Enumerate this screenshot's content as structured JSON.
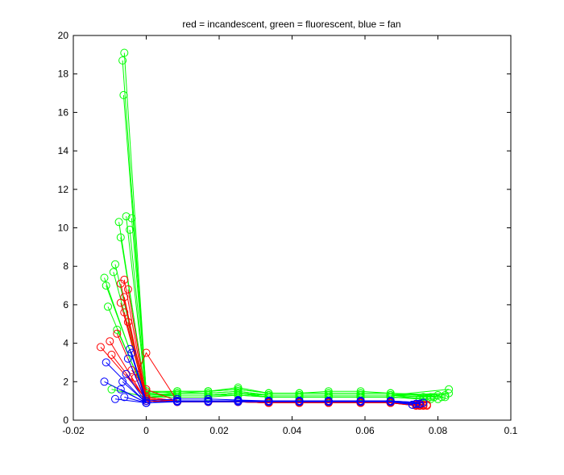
{
  "chart_data": {
    "type": "line",
    "title": "red = incandescent, green = fluorescent, blue = fan",
    "xlabel": "",
    "ylabel": "",
    "xlim": [
      -0.02,
      0.1
    ],
    "ylim": [
      0,
      20
    ],
    "xticks": [
      "-0.02",
      "0",
      "0.02",
      "0.04",
      "0.06",
      "0.08",
      "0.1"
    ],
    "yticks": [
      "0",
      "2",
      "4",
      "6",
      "8",
      "10",
      "12",
      "14",
      "16",
      "18",
      "20"
    ],
    "grid": false,
    "marker": "circle-open",
    "series": [
      {
        "color": "#00ff00",
        "x": [
          -0.006,
          0,
          0.0085,
          0.017,
          0.0252,
          0.0336,
          0.042,
          0.05,
          0.0588,
          0.067,
          0.083
        ],
        "y": [
          19.1,
          1.4,
          1.3,
          1.3,
          1.4,
          1.3,
          1.3,
          1.3,
          1.3,
          1.3,
          1.6
        ]
      },
      {
        "color": "#00ff00",
        "x": [
          -0.0065,
          0,
          0.0085,
          0.017,
          0.0252,
          0.0336,
          0.042,
          0.05,
          0.0588,
          0.067,
          0.083
        ],
        "y": [
          18.7,
          1.3,
          1.3,
          1.3,
          1.4,
          1.3,
          1.3,
          1.3,
          1.3,
          1.3,
          1.4
        ]
      },
      {
        "color": "#00ff00",
        "x": [
          -0.0062,
          0,
          0.0085,
          0.017,
          0.0252,
          0.0336,
          0.042,
          0.05,
          0.0588,
          0.067,
          0.082
        ],
        "y": [
          16.9,
          1.5,
          1.4,
          1.5,
          1.6,
          1.4,
          1.4,
          1.4,
          1.4,
          1.4,
          1.3
        ]
      },
      {
        "color": "#00ff00",
        "x": [
          -0.004,
          0,
          0.0085,
          0.017,
          0.0252,
          0.0336,
          0.042,
          0.05,
          0.0588,
          0.067,
          0.082
        ],
        "y": [
          10.5,
          1.5,
          1.5,
          1.5,
          1.7,
          1.4,
          1.4,
          1.5,
          1.5,
          1.4,
          1.2
        ]
      },
      {
        "color": "#00ff00",
        "x": [
          -0.0055,
          0,
          0.0085,
          0.017,
          0.0252,
          0.0336,
          0.042,
          0.05,
          0.0588,
          0.067,
          0.081
        ],
        "y": [
          10.6,
          1.3,
          1.4,
          1.4,
          1.5,
          1.3,
          1.3,
          1.3,
          1.3,
          1.3,
          1.2
        ]
      },
      {
        "color": "#00ff00",
        "x": [
          -0.0075,
          0,
          0.0085,
          0.017,
          0.0252,
          0.0336,
          0.042,
          0.05,
          0.0588,
          0.067,
          0.08
        ],
        "y": [
          10.3,
          1.2,
          1.3,
          1.3,
          1.4,
          1.2,
          1.2,
          1.2,
          1.2,
          1.2,
          1.1
        ]
      },
      {
        "color": "#00ff00",
        "x": [
          -0.0045,
          0,
          0.0085,
          0.017,
          0.0252,
          0.0336,
          0.042,
          0.05,
          0.0588,
          0.067,
          0.08
        ],
        "y": [
          9.9,
          1.4,
          1.5,
          1.5,
          1.6,
          1.4,
          1.4,
          1.4,
          1.4,
          1.4,
          1.3
        ]
      },
      {
        "color": "#00ff00",
        "x": [
          -0.007,
          0,
          0.0085,
          0.017,
          0.0252,
          0.0336,
          0.042,
          0.05,
          0.0588,
          0.067,
          0.079
        ],
        "y": [
          9.5,
          1.3,
          1.4,
          1.4,
          1.5,
          1.3,
          1.3,
          1.3,
          1.3,
          1.3,
          1.2
        ]
      },
      {
        "color": "#00ff00",
        "x": [
          -0.0085,
          0,
          0.0085,
          0.017,
          0.0252,
          0.0336,
          0.042,
          0.05,
          0.0588,
          0.067,
          0.078
        ],
        "y": [
          8.1,
          1.2,
          1.3,
          1.3,
          1.4,
          1.2,
          1.2,
          1.2,
          1.2,
          1.2,
          1.1
        ]
      },
      {
        "color": "#00ff00",
        "x": [
          -0.009,
          0,
          0.0085,
          0.017,
          0.0252,
          0.0336,
          0.042,
          0.05,
          0.0588,
          0.067,
          0.078
        ],
        "y": [
          7.7,
          1.3,
          1.3,
          1.3,
          1.4,
          1.3,
          1.3,
          1.3,
          1.3,
          1.3,
          1.2
        ]
      },
      {
        "color": "#00ff00",
        "x": [
          -0.0115,
          0,
          0.0085,
          0.017,
          0.0252,
          0.0336,
          0.042,
          0.05,
          0.0588,
          0.067,
          0.077
        ],
        "y": [
          7.4,
          1.2,
          1.3,
          1.3,
          1.4,
          1.2,
          1.2,
          1.2,
          1.2,
          1.2,
          1.1
        ]
      },
      {
        "color": "#00ff00",
        "x": [
          -0.011,
          0,
          0.0085,
          0.017,
          0.0252,
          0.0336,
          0.042,
          0.05,
          0.0588,
          0.067,
          0.076
        ],
        "y": [
          7.0,
          1.3,
          1.3,
          1.3,
          1.4,
          1.3,
          1.3,
          1.3,
          1.3,
          1.3,
          1.1
        ]
      },
      {
        "color": "#00ff00",
        "x": [
          -0.0105,
          0,
          0.0085,
          0.017,
          0.0252,
          0.0336,
          0.042,
          0.05,
          0.0588,
          0.067,
          0.076
        ],
        "y": [
          5.9,
          1.2,
          1.3,
          1.3,
          1.3,
          1.2,
          1.2,
          1.2,
          1.2,
          1.2,
          1.1
        ]
      },
      {
        "color": "#00ff00",
        "x": [
          -0.008,
          0,
          0.0085,
          0.017,
          0.0252,
          0.0336,
          0.042,
          0.05,
          0.0588,
          0.067,
          0.076
        ],
        "y": [
          4.7,
          1.3,
          1.3,
          1.3,
          1.4,
          1.3,
          1.3,
          1.3,
          1.3,
          1.3,
          1.2
        ]
      },
      {
        "color": "#00ff00",
        "x": [
          -0.0095,
          0,
          0.0085,
          0.017,
          0.0252,
          0.0336,
          0.042,
          0.05,
          0.0588,
          0.067,
          0.075
        ],
        "y": [
          1.6,
          1.2,
          1.2,
          1.2,
          1.3,
          1.2,
          1.2,
          1.2,
          1.2,
          1.2,
          1.1
        ]
      },
      {
        "color": "#ff0000",
        "x": [
          -0.006,
          0,
          0.0085,
          0.017,
          0.0252,
          0.0336,
          0.042,
          0.05,
          0.0588,
          0.067,
          0.077
        ],
        "y": [
          7.3,
          1.0,
          0.95,
          0.95,
          0.95,
          0.9,
          0.9,
          0.9,
          0.9,
          0.9,
          0.75
        ]
      },
      {
        "color": "#ff0000",
        "x": [
          -0.007,
          0,
          0.0085,
          0.017,
          0.0252,
          0.0336,
          0.042,
          0.05,
          0.0588,
          0.067,
          0.077
        ],
        "y": [
          7.1,
          1.1,
          1.0,
          1.0,
          1.0,
          0.95,
          0.95,
          0.95,
          0.95,
          0.95,
          0.8
        ]
      },
      {
        "color": "#ff0000",
        "x": [
          -0.005,
          0,
          0.0085,
          0.017,
          0.0252,
          0.0336,
          0.042,
          0.05,
          0.0588,
          0.067,
          0.076
        ],
        "y": [
          6.8,
          1.2,
          1.0,
          1.0,
          1.0,
          0.9,
          0.9,
          0.9,
          0.9,
          0.9,
          0.75
        ]
      },
      {
        "color": "#ff0000",
        "x": [
          -0.006,
          0,
          0.0085,
          0.017,
          0.0252,
          0.0336,
          0.042,
          0.05,
          0.0588,
          0.067,
          0.076
        ],
        "y": [
          6.4,
          1.0,
          0.95,
          0.95,
          0.95,
          0.9,
          0.9,
          0.9,
          0.9,
          0.9,
          0.75
        ]
      },
      {
        "color": "#ff0000",
        "x": [
          -0.007,
          0,
          0.0085,
          0.017,
          0.0252,
          0.0336,
          0.042,
          0.05,
          0.0588,
          0.067,
          0.076
        ],
        "y": [
          6.1,
          1.1,
          1.0,
          1.0,
          1.0,
          0.95,
          0.95,
          0.95,
          0.95,
          0.95,
          0.8
        ]
      },
      {
        "color": "#ff0000",
        "x": [
          -0.006,
          0,
          0.0085,
          0.017,
          0.0252,
          0.0336,
          0.042,
          0.05,
          0.0588,
          0.067,
          0.075
        ],
        "y": [
          5.6,
          1.0,
          0.95,
          0.95,
          0.95,
          0.9,
          0.9,
          0.9,
          0.9,
          0.9,
          0.75
        ]
      },
      {
        "color": "#ff0000",
        "x": [
          -0.005,
          0,
          0.0085,
          0.017,
          0.0252,
          0.0336,
          0.042,
          0.05,
          0.0588,
          0.067,
          0.075
        ],
        "y": [
          5.1,
          1.2,
          1.0,
          1.0,
          1.0,
          0.9,
          0.9,
          0.9,
          0.9,
          0.9,
          0.75
        ]
      },
      {
        "color": "#ff0000",
        "x": [
          -0.008,
          0,
          0.0085,
          0.017,
          0.0252,
          0.0336,
          0.042,
          0.05,
          0.0588,
          0.067,
          0.075
        ],
        "y": [
          4.5,
          1.0,
          0.95,
          0.95,
          0.95,
          0.9,
          0.9,
          0.9,
          0.9,
          0.9,
          0.8
        ]
      },
      {
        "color": "#ff0000",
        "x": [
          -0.0125,
          0,
          0.0085,
          0.017,
          0.0252,
          0.0336,
          0.042,
          0.05,
          0.0588,
          0.067,
          0.075
        ],
        "y": [
          3.8,
          1.1,
          1.0,
          1.0,
          1.0,
          0.95,
          0.95,
          0.95,
          0.95,
          0.95,
          0.75
        ]
      },
      {
        "color": "#ff0000",
        "x": [
          -0.01,
          0,
          0.0085,
          0.017,
          0.0252,
          0.0336,
          0.042,
          0.05,
          0.0588,
          0.067,
          0.074
        ],
        "y": [
          4.1,
          1.0,
          0.95,
          0.95,
          0.95,
          0.9,
          0.9,
          0.9,
          0.9,
          0.9,
          0.75
        ]
      },
      {
        "color": "#ff0000",
        "x": [
          -0.0095,
          0,
          0.0085,
          0.017,
          0.0252,
          0.0336,
          0.042,
          0.05,
          0.0588,
          0.067,
          0.074
        ],
        "y": [
          3.4,
          1.1,
          0.95,
          0.95,
          0.95,
          0.9,
          0.9,
          0.9,
          0.9,
          0.9,
          0.8
        ]
      },
      {
        "color": "#ff0000",
        "x": [
          -0.004,
          0,
          0.0085,
          0.017,
          0.0252,
          0.0336,
          0.042,
          0.05,
          0.0588,
          0.067,
          0.074
        ],
        "y": [
          2.6,
          1.6,
          1.0,
          1.0,
          1.0,
          0.9,
          0.9,
          0.9,
          0.9,
          0.9,
          0.75
        ]
      },
      {
        "color": "#ff0000",
        "x": [
          -0.003,
          0,
          0.0085,
          0.017,
          0.0252,
          0.0336,
          0.042,
          0.05,
          0.0588,
          0.067,
          0.074
        ],
        "y": [
          2.2,
          3.5,
          1.0,
          1.0,
          1.0,
          0.9,
          0.9,
          0.9,
          0.9,
          0.9,
          0.8
        ]
      },
      {
        "color": "#0000ff",
        "x": [
          -0.0045,
          0,
          0.0085,
          0.017,
          0.0252,
          0.0336,
          0.042,
          0.05,
          0.0588,
          0.067,
          0.076
        ],
        "y": [
          3.7,
          0.9,
          1.0,
          1.0,
          1.0,
          1.0,
          1.0,
          1.0,
          1.0,
          1.0,
          0.9
        ]
      },
      {
        "color": "#0000ff",
        "x": [
          -0.004,
          0,
          0.0085,
          0.017,
          0.0252,
          0.0336,
          0.042,
          0.05,
          0.0588,
          0.067,
          0.076
        ],
        "y": [
          3.5,
          1.0,
          1.1,
          1.1,
          1.05,
          1.0,
          1.0,
          1.0,
          1.0,
          1.0,
          0.9
        ]
      },
      {
        "color": "#0000ff",
        "x": [
          -0.005,
          0,
          0.0085,
          0.017,
          0.0252,
          0.0336,
          0.042,
          0.05,
          0.0588,
          0.067,
          0.075
        ],
        "y": [
          3.2,
          0.9,
          1.0,
          1.0,
          1.0,
          1.0,
          1.0,
          1.0,
          1.0,
          1.0,
          0.85
        ]
      },
      {
        "color": "#0000ff",
        "x": [
          -0.011,
          0,
          0.0085,
          0.017,
          0.0252,
          0.0336,
          0.042,
          0.05,
          0.0588,
          0.067,
          0.075
        ],
        "y": [
          3.0,
          0.9,
          1.0,
          1.0,
          1.0,
          1.0,
          1.0,
          1.0,
          1.0,
          1.0,
          0.85
        ]
      },
      {
        "color": "#0000ff",
        "x": [
          -0.0055,
          0,
          0.0085,
          0.017,
          0.0252,
          0.0336,
          0.042,
          0.05,
          0.0588,
          0.067,
          0.075
        ],
        "y": [
          2.4,
          0.9,
          1.0,
          1.0,
          1.0,
          1.0,
          1.0,
          1.0,
          1.0,
          1.0,
          0.85
        ]
      },
      {
        "color": "#0000ff",
        "x": [
          -0.0065,
          0,
          0.0085,
          0.017,
          0.0252,
          0.0336,
          0.042,
          0.05,
          0.0588,
          0.067,
          0.074
        ],
        "y": [
          2.0,
          0.9,
          1.0,
          1.0,
          1.0,
          1.0,
          1.0,
          1.0,
          1.0,
          1.0,
          0.85
        ]
      },
      {
        "color": "#0000ff",
        "x": [
          -0.0115,
          0,
          0.0085,
          0.017,
          0.0252,
          0.0336,
          0.042,
          0.05,
          0.0588,
          0.067,
          0.074
        ],
        "y": [
          2.0,
          0.9,
          1.0,
          1.0,
          1.0,
          1.0,
          1.0,
          1.0,
          1.0,
          1.0,
          0.85
        ]
      },
      {
        "color": "#0000ff",
        "x": [
          -0.007,
          0,
          0.0085,
          0.017,
          0.0252,
          0.0336,
          0.042,
          0.05,
          0.0588,
          0.067,
          0.074
        ],
        "y": [
          1.6,
          0.9,
          1.0,
          1.0,
          1.0,
          1.0,
          1.0,
          1.0,
          1.0,
          1.0,
          0.85
        ]
      },
      {
        "color": "#0000ff",
        "x": [
          -0.006,
          0,
          0.0085,
          0.017,
          0.0252,
          0.0336,
          0.042,
          0.05,
          0.0588,
          0.067,
          0.073
        ],
        "y": [
          1.2,
          0.9,
          1.0,
          1.0,
          1.0,
          1.0,
          1.0,
          1.0,
          1.0,
          1.0,
          0.8
        ]
      },
      {
        "color": "#0000ff",
        "x": [
          -0.0085,
          0,
          0.0085,
          0.017,
          0.0252,
          0.0336,
          0.042,
          0.05,
          0.0588,
          0.067,
          0.073
        ],
        "y": [
          1.1,
          0.9,
          0.95,
          0.95,
          0.95,
          0.95,
          0.95,
          0.95,
          0.95,
          0.95,
          0.8
        ]
      }
    ]
  }
}
